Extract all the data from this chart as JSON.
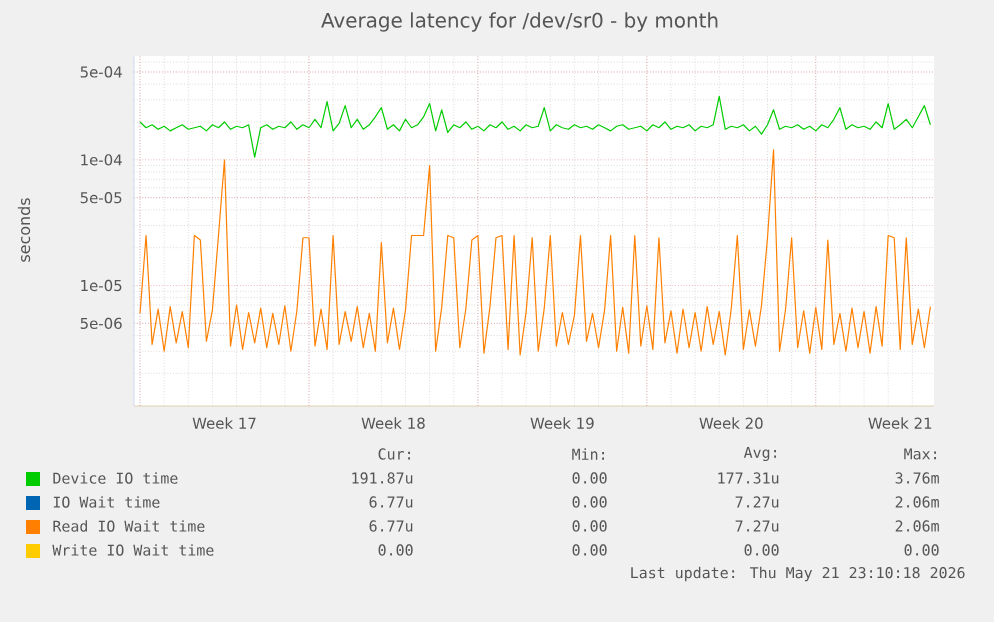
{
  "chart_data": {
    "type": "line",
    "title": "Average latency for /dev/sr0 - by month",
    "ylabel": "seconds",
    "log": "y",
    "grid": true,
    "legend": "bottom",
    "xlim": [
      "2026-04-19T18:00",
      "2026-05-22T21:36"
    ],
    "ylim": [
      1.1e-06,
      0.00067
    ],
    "xticks": [
      {
        "value": "2026-04-20",
        "label": null
      },
      {
        "value": "2026-04-23T12:00",
        "label": "Week 17"
      },
      {
        "value": "2026-04-27",
        "label": null
      },
      {
        "value": "2026-04-30T12:00",
        "label": "Week 18"
      },
      {
        "value": "2026-05-04",
        "label": null
      },
      {
        "value": "2026-05-07T12:00",
        "label": "Week 19"
      },
      {
        "value": "2026-05-11",
        "label": null
      },
      {
        "value": "2026-05-14T12:00",
        "label": "Week 20"
      },
      {
        "value": "2026-05-18",
        "label": null
      },
      {
        "value": "2026-05-21T12:00",
        "label": "Week 21"
      }
    ],
    "yticks": [
      {
        "value": 5e-06,
        "label": "5e-06"
      },
      {
        "value": 1e-05,
        "label": "1e-05"
      },
      {
        "value": 5e-05,
        "label": "5e-05"
      },
      {
        "value": 0.0001,
        "label": "1e-04"
      },
      {
        "value": 0.0005,
        "label": "5e-04"
      }
    ],
    "x": [
      "2026-04-20T00:00",
      "2026-04-20T06:00",
      "2026-04-20T12:00",
      "2026-04-20T18:00",
      "2026-04-21T00:00",
      "2026-04-21T06:00",
      "2026-04-21T12:00",
      "2026-04-21T18:00",
      "2026-04-22T00:00",
      "2026-04-22T06:00",
      "2026-04-22T12:00",
      "2026-04-22T18:00",
      "2026-04-23T00:00",
      "2026-04-23T06:00",
      "2026-04-23T12:00",
      "2026-04-23T18:00",
      "2026-04-24T00:00",
      "2026-04-24T06:00",
      "2026-04-24T12:00",
      "2026-04-24T18:00",
      "2026-04-25T00:00",
      "2026-04-25T06:00",
      "2026-04-25T12:00",
      "2026-04-25T18:00",
      "2026-04-26T00:00",
      "2026-04-26T06:00",
      "2026-04-26T12:00",
      "2026-04-26T18:00",
      "2026-04-27T00:00",
      "2026-04-27T06:00",
      "2026-04-27T12:00",
      "2026-04-27T18:00",
      "2026-04-28T00:00",
      "2026-04-28T06:00",
      "2026-04-28T12:00",
      "2026-04-28T18:00",
      "2026-04-29T00:00",
      "2026-04-29T06:00",
      "2026-04-29T12:00",
      "2026-04-29T18:00",
      "2026-04-30T00:00",
      "2026-04-30T06:00",
      "2026-04-30T12:00",
      "2026-04-30T18:00",
      "2026-05-01T00:00",
      "2026-05-01T06:00",
      "2026-05-01T12:00",
      "2026-05-01T18:00",
      "2026-05-02T00:00",
      "2026-05-02T06:00",
      "2026-05-02T12:00",
      "2026-05-02T18:00",
      "2026-05-03T00:00",
      "2026-05-03T06:00",
      "2026-05-03T12:00",
      "2026-05-03T18:00",
      "2026-05-04T00:00",
      "2026-05-04T06:00",
      "2026-05-04T12:00",
      "2026-05-04T18:00",
      "2026-05-05T00:00",
      "2026-05-05T06:00",
      "2026-05-05T12:00",
      "2026-05-05T18:00",
      "2026-05-06T00:00",
      "2026-05-06T06:00",
      "2026-05-06T12:00",
      "2026-05-06T18:00",
      "2026-05-07T00:00",
      "2026-05-07T06:00",
      "2026-05-07T12:00",
      "2026-05-07T18:00",
      "2026-05-08T00:00",
      "2026-05-08T06:00",
      "2026-05-08T12:00",
      "2026-05-08T18:00",
      "2026-05-09T00:00",
      "2026-05-09T06:00",
      "2026-05-09T12:00",
      "2026-05-09T18:00",
      "2026-05-10T00:00",
      "2026-05-10T06:00",
      "2026-05-10T12:00",
      "2026-05-10T18:00",
      "2026-05-11T00:00",
      "2026-05-11T06:00",
      "2026-05-11T12:00",
      "2026-05-11T18:00",
      "2026-05-12T00:00",
      "2026-05-12T06:00",
      "2026-05-12T12:00",
      "2026-05-12T18:00",
      "2026-05-13T00:00",
      "2026-05-13T06:00",
      "2026-05-13T12:00",
      "2026-05-13T18:00",
      "2026-05-14T00:00",
      "2026-05-14T06:00",
      "2026-05-14T12:00",
      "2026-05-14T18:00",
      "2026-05-15T00:00",
      "2026-05-15T06:00",
      "2026-05-15T12:00",
      "2026-05-15T18:00",
      "2026-05-16T00:00",
      "2026-05-16T06:00",
      "2026-05-16T12:00",
      "2026-05-16T18:00",
      "2026-05-17T00:00",
      "2026-05-17T06:00",
      "2026-05-17T12:00",
      "2026-05-17T18:00",
      "2026-05-18T00:00",
      "2026-05-18T06:00",
      "2026-05-18T12:00",
      "2026-05-18T18:00",
      "2026-05-19T00:00",
      "2026-05-19T06:00",
      "2026-05-19T12:00",
      "2026-05-19T18:00",
      "2026-05-20T00:00",
      "2026-05-20T06:00",
      "2026-05-20T12:00",
      "2026-05-20T18:00",
      "2026-05-21T00:00",
      "2026-05-21T06:00",
      "2026-05-21T12:00",
      "2026-05-21T18:00",
      "2026-05-22T00:00",
      "2026-05-22T06:00",
      "2026-05-22T12:00",
      "2026-05-22T18:00"
    ],
    "series": [
      {
        "name": "Device IO time",
        "color": "#00cc00",
        "values": [
          0.0002,
          0.00018,
          0.00019,
          0.000175,
          0.000185,
          0.00017,
          0.00018,
          0.00019,
          0.000175,
          0.00018,
          0.000185,
          0.00017,
          0.00019,
          0.00018,
          0.0002,
          0.000175,
          0.000185,
          0.00018,
          0.00019,
          0.000105,
          0.00018,
          0.00019,
          0.000175,
          0.000185,
          0.00018,
          0.0002,
          0.000175,
          0.00019,
          0.00018,
          0.00021,
          0.00018,
          0.00029,
          0.00017,
          0.000195,
          0.00027,
          0.00018,
          0.00021,
          0.000175,
          0.00019,
          0.00022,
          0.00026,
          0.000175,
          0.00019,
          0.00017,
          0.00021,
          0.00018,
          0.00019,
          0.00022,
          0.00028,
          0.00017,
          0.00025,
          0.000165,
          0.00019,
          0.00018,
          0.0002,
          0.000175,
          0.000185,
          0.00017,
          0.00019,
          0.00018,
          0.0002,
          0.000175,
          0.000185,
          0.00017,
          0.00019,
          0.00018,
          0.000185,
          0.00026,
          0.00017,
          0.00019,
          0.00018,
          0.000175,
          0.00019,
          0.00018,
          0.000185,
          0.000175,
          0.00019,
          0.00018,
          0.00017,
          0.000185,
          0.00019,
          0.000175,
          0.00018,
          0.000185,
          0.00017,
          0.00019,
          0.00018,
          0.0002,
          0.000175,
          0.000185,
          0.00018,
          0.00019,
          0.00017,
          0.000185,
          0.00018,
          0.00019,
          0.00032,
          0.000175,
          0.000185,
          0.00018,
          0.00019,
          0.00017,
          0.000185,
          0.00016,
          0.00019,
          0.00025,
          0.000175,
          0.000185,
          0.00018,
          0.00019,
          0.000175,
          0.000185,
          0.00017,
          0.00019,
          0.00018,
          0.00021,
          0.00026,
          0.000175,
          0.00019,
          0.00018,
          0.000185,
          0.000175,
          0.0002,
          0.00018,
          0.00028,
          0.000175,
          0.00019,
          0.00021,
          0.00018,
          0.00022,
          0.00027,
          0.00019
        ]
      },
      {
        "name": "IO Wait time",
        "color": "#0066b3",
        "values": [
          null,
          null,
          null,
          null,
          null,
          null,
          null,
          null,
          null,
          null,
          null,
          null,
          null,
          null,
          null,
          null,
          null,
          null,
          null,
          null,
          null,
          null,
          null,
          null,
          null,
          null,
          null,
          null,
          null,
          null,
          null,
          null,
          null,
          null,
          null,
          null,
          null,
          null,
          null,
          null,
          null,
          null,
          null,
          null,
          null,
          null,
          null,
          null,
          null,
          null,
          null,
          null,
          null,
          null,
          null,
          null,
          null,
          null,
          null,
          null,
          null,
          null,
          null,
          null,
          null,
          null,
          null,
          null,
          null,
          null,
          null,
          null,
          null,
          null,
          null,
          null,
          null,
          null,
          null,
          null,
          null,
          null,
          null,
          null,
          null,
          null,
          null,
          null,
          null,
          null,
          null,
          null,
          null,
          null,
          null,
          null,
          null,
          null,
          null,
          null,
          null,
          null,
          null,
          null,
          null,
          null,
          null,
          null,
          null,
          null,
          null,
          null,
          null,
          null,
          null,
          null,
          null,
          null,
          null,
          null,
          null,
          null,
          null,
          null,
          null,
          null,
          null,
          null,
          null,
          null,
          null,
          null
        ]
      },
      {
        "name": "Read IO Wait time",
        "color": "#ff8000",
        "values": [
          6e-06,
          2.5e-05,
          3.4e-06,
          6.5e-06,
          3e-06,
          6.8e-06,
          3.5e-06,
          6.2e-06,
          3.2e-06,
          2.5e-05,
          2.3e-05,
          3.6e-06,
          6.4e-06,
          2.5e-05,
          0.0001,
          3.3e-06,
          7e-06,
          3.1e-06,
          6.1e-06,
          3.5e-06,
          6.6e-06,
          3.2e-06,
          6e-06,
          3.4e-06,
          6.9e-06,
          3e-06,
          6.3e-06,
          2.4e-05,
          2.4e-05,
          3.3e-06,
          6.5e-06,
          3.1e-06,
          2.5e-05,
          3.4e-06,
          6.2e-06,
          3.6e-06,
          6.8e-06,
          3.2e-06,
          6e-06,
          3e-06,
          2.2e-05,
          3.5e-06,
          6.6e-06,
          3.1e-06,
          6.4e-06,
          2.5e-05,
          2.5e-05,
          2.5e-05,
          9e-05,
          3e-06,
          6.7e-06,
          2.5e-05,
          2.4e-05,
          3.2e-06,
          6.5e-06,
          2.3e-05,
          2.5e-05,
          2.9e-06,
          6.8e-06,
          2.4e-05,
          2.5e-05,
          3.1e-06,
          2.5e-05,
          2.8e-06,
          6.2e-06,
          2.4e-05,
          3e-06,
          6.6e-06,
          2.5e-05,
          3.3e-06,
          6.1e-06,
          3.4e-06,
          5.8e-06,
          2.5e-05,
          3.6e-06,
          6e-06,
          3.2e-06,
          6.4e-06,
          2.5e-05,
          3e-06,
          6.7e-06,
          2.9e-06,
          2.5e-05,
          3.3e-06,
          6.9e-06,
          3.1e-06,
          2.4e-05,
          3.5e-06,
          6.3e-06,
          2.9e-06,
          6.5e-06,
          3.2e-06,
          6.1e-06,
          3e-06,
          6.8e-06,
          3.4e-06,
          6.2e-06,
          2.8e-06,
          6.6e-06,
          2.5e-05,
          3.1e-06,
          6.4e-06,
          3.3e-06,
          6.9e-06,
          2.4e-05,
          0.00012,
          3e-06,
          6.5e-06,
          2.4e-05,
          3.2e-06,
          6.3e-06,
          2.9e-06,
          6.7e-06,
          3.1e-06,
          2.3e-05,
          3.4e-06,
          6e-06,
          3e-06,
          6.6e-06,
          3.2e-06,
          6.2e-06,
          2.9e-06,
          6.8e-06,
          3.3e-06,
          2.5e-05,
          2.4e-05,
          3.1e-06,
          2.4e-05,
          3.4e-06,
          6.5e-06,
          3.2e-06,
          6.8e-06
        ]
      },
      {
        "name": "Write IO Wait time",
        "color": "#ffcc00",
        "values": [
          null,
          null,
          null,
          null,
          null,
          null,
          null,
          null,
          null,
          null,
          null,
          null,
          null,
          null,
          null,
          null,
          null,
          null,
          null,
          null,
          null,
          null,
          null,
          null,
          null,
          null,
          null,
          null,
          null,
          null,
          null,
          null,
          null,
          null,
          null,
          null,
          null,
          null,
          null,
          null,
          null,
          null,
          null,
          null,
          null,
          null,
          null,
          null,
          null,
          null,
          null,
          null,
          null,
          null,
          null,
          null,
          null,
          null,
          null,
          null,
          null,
          null,
          null,
          null,
          null,
          null,
          null,
          null,
          null,
          null,
          null,
          null,
          null,
          null,
          null,
          null,
          null,
          null,
          null,
          null,
          null,
          null,
          null,
          null,
          null,
          null,
          null,
          null,
          null,
          null,
          null,
          null,
          null,
          null,
          null,
          null,
          null,
          null,
          null,
          null,
          null,
          null,
          null,
          null,
          null,
          null,
          null,
          null,
          null,
          null,
          null,
          null,
          null,
          null,
          null,
          null,
          null,
          null,
          null,
          null,
          null,
          null,
          null,
          null,
          null,
          null,
          null,
          null,
          null,
          null,
          null,
          null
        ]
      }
    ],
    "annotations": [
      "Cur:",
      "Min:",
      "Avg:",
      "Max:",
      "191.87u",
      "0.00",
      "177.31u",
      "3.76m",
      "6.77u",
      "0.00",
      "7.27u",
      "2.06m",
      "6.77u",
      "0.00",
      "7.27u",
      "2.06m",
      "0.00",
      "0.00",
      "0.00",
      "0.00",
      "Last update: Thu May 21 23:10:18 2026"
    ]
  }
}
